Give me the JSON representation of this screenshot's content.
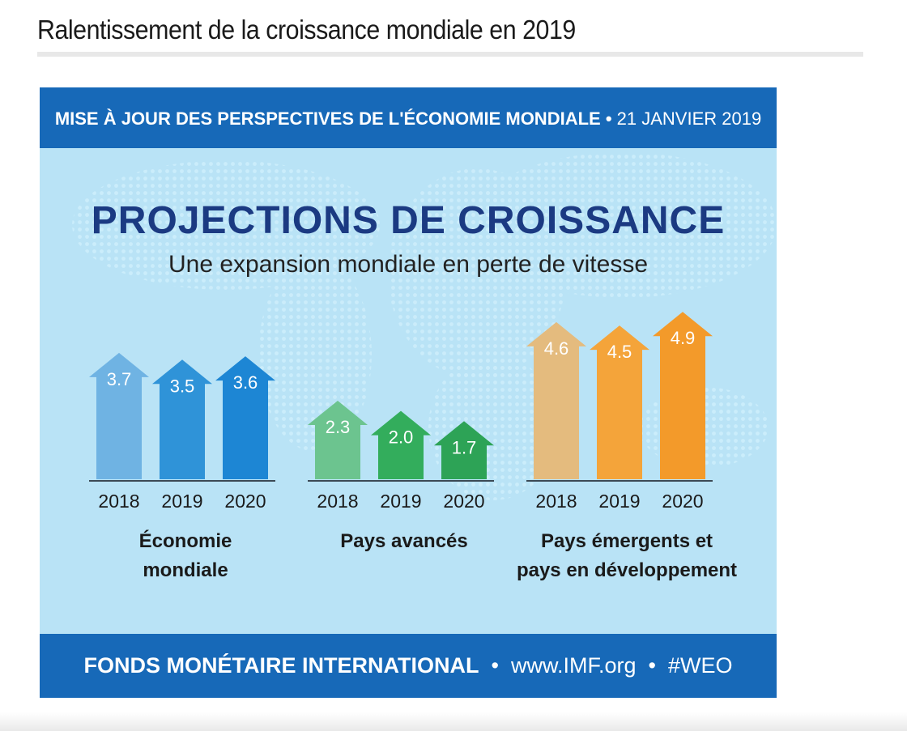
{
  "page": {
    "title": "Ralentissement de la croissance mondiale en 2019"
  },
  "infographic": {
    "header_main": "MISE À JOUR DES PERSPECTIVES DE L'ÉCONOMIE MONDIALE",
    "header_sep": " • ",
    "header_date": "21 JANVIER 2019",
    "headline": "PROJECTIONS DE CROISSANCE",
    "subheadline": "Une expansion mondiale en perte de vitesse",
    "footer_org": "FONDS MONÉTAIRE INTERNATIONAL",
    "footer_sep": "  •  ",
    "footer_url": "www.IMF.org",
    "footer_tag": "#WEO"
  },
  "chart_data": {
    "type": "bar",
    "categories": [
      "2018",
      "2019",
      "2020"
    ],
    "groups": [
      {
        "name_line1": "Économie",
        "name_line2": "mondiale",
        "values": [
          3.7,
          3.5,
          3.6
        ],
        "colors": [
          "#6fb3e3",
          "#2f93d8",
          "#1d86d4"
        ]
      },
      {
        "name_line1": "Pays avancés",
        "name_line2": "",
        "values": [
          2.3,
          2.0,
          1.7
        ],
        "colors": [
          "#6cc48f",
          "#33ad5c",
          "#2da356"
        ]
      },
      {
        "name_line1": "Pays émergents et",
        "name_line2": "pays en développement",
        "values": [
          4.6,
          4.5,
          4.9
        ],
        "colors": [
          "#e4bb7e",
          "#f4a43a",
          "#f39a2a"
        ]
      }
    ],
    "value_labels": [
      "3.7",
      "3.5",
      "3.6",
      "2.3",
      "2.0",
      "1.7",
      "4.6",
      "4.5",
      "4.9"
    ]
  }
}
